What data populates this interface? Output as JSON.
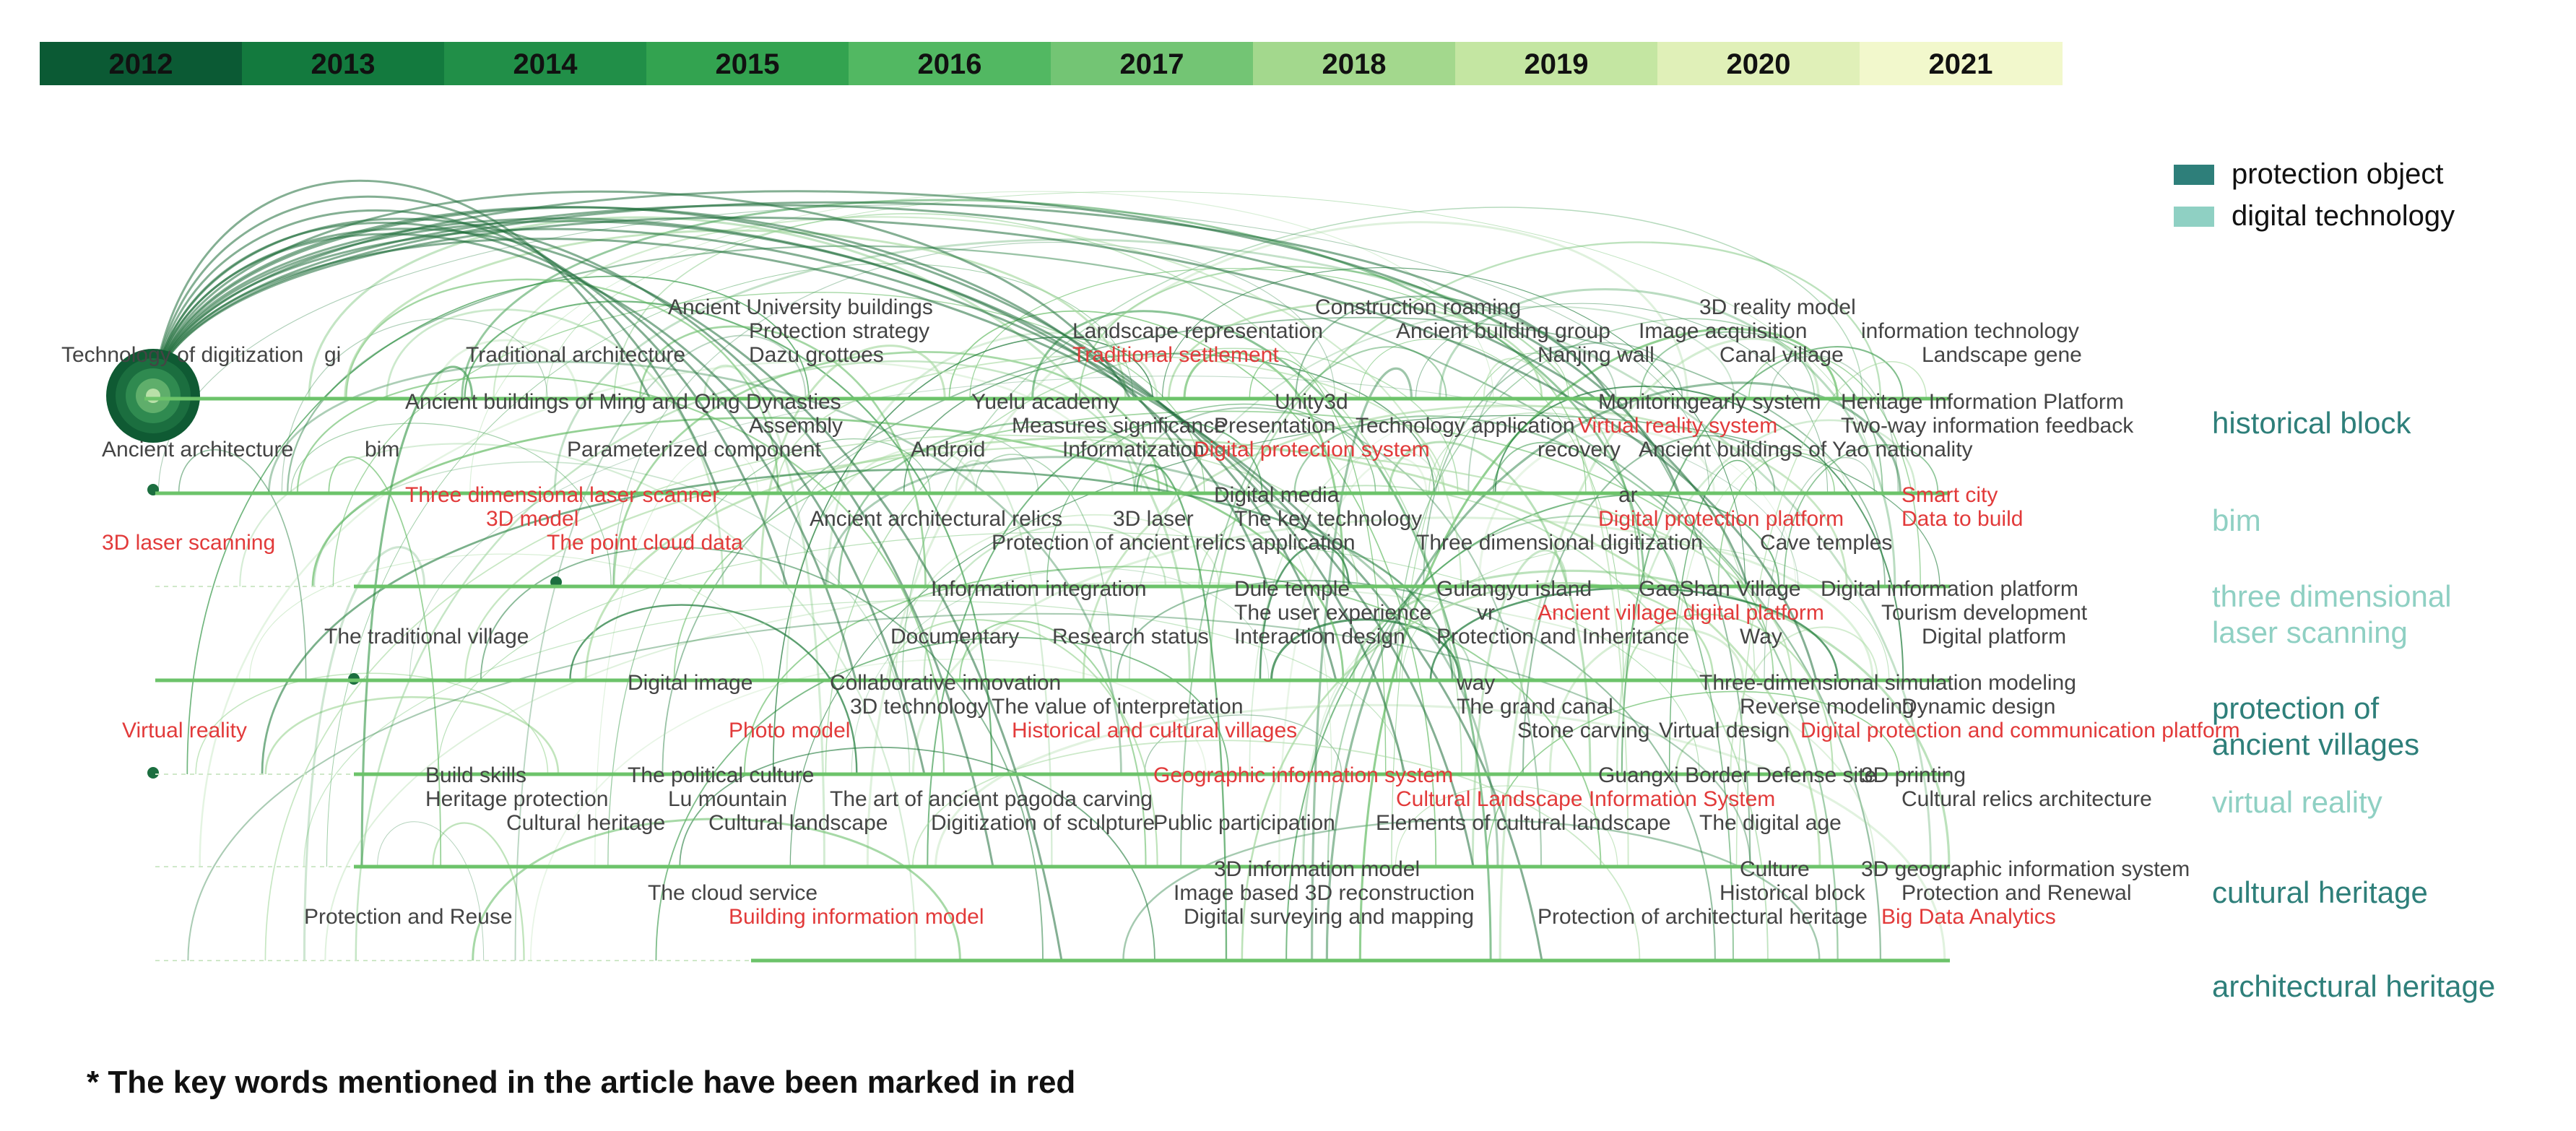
{
  "years": [
    {
      "label": "2012",
      "color": "#0b5a34"
    },
    {
      "label": "2013",
      "color": "#137a3e"
    },
    {
      "label": "2014",
      "color": "#218f48"
    },
    {
      "label": "2015",
      "color": "#33a350"
    },
    {
      "label": "2016",
      "color": "#52b862"
    },
    {
      "label": "2017",
      "color": "#73c574"
    },
    {
      "label": "2018",
      "color": "#a3d88d"
    },
    {
      "label": "2019",
      "color": "#c4e6a2"
    },
    {
      "label": "2020",
      "color": "#e0f0b8"
    },
    {
      "label": "2021",
      "color": "#f2f8cc"
    }
  ],
  "legend": [
    {
      "label": "protection object",
      "color": "#2e7f7a"
    },
    {
      "label": "digital technology",
      "color": "#8fd0c3"
    }
  ],
  "categories": [
    {
      "label": [
        "historical block"
      ],
      "color": "#2e7f7a"
    },
    {
      "label": [
        "bim"
      ],
      "color": "#8fd0c3"
    },
    {
      "label": [
        "three dimensional",
        "laser scanning"
      ],
      "color": "#8fd0c3"
    },
    {
      "label": [
        "protection of",
        "ancient villages"
      ],
      "color": "#2e7f7a"
    },
    {
      "label": [
        "virtual reality"
      ],
      "color": "#8fd0c3"
    },
    {
      "label": [
        "cultural heritage"
      ],
      "color": "#2e7f7a"
    },
    {
      "label": [
        "architectural heritage"
      ],
      "color": "#2e7f7a"
    }
  ],
  "keywords": [
    {
      "text": "Technology of digitization",
      "red": false,
      "band": 0,
      "col": 0.0,
      "line": 2
    },
    {
      "text": "gi",
      "red": false,
      "band": 0,
      "col": 1.3,
      "line": 2
    },
    {
      "text": "Traditional architecture",
      "red": false,
      "band": 0,
      "col": 2.0,
      "line": 2
    },
    {
      "text": "Ancient University buildings",
      "red": false,
      "band": 0,
      "col": 3.0,
      "line": 0
    },
    {
      "text": "Protection strategy",
      "red": false,
      "band": 0,
      "col": 3.4,
      "line": 1
    },
    {
      "text": "Dazu grottoes",
      "red": false,
      "band": 0,
      "col": 3.4,
      "line": 2
    },
    {
      "text": "Landscape representation",
      "red": false,
      "band": 0,
      "col": 5.0,
      "line": 1
    },
    {
      "text": "Traditional settlement",
      "red": true,
      "band": 0,
      "col": 5.0,
      "line": 2
    },
    {
      "text": "Construction roaming",
      "red": false,
      "band": 0,
      "col": 6.2,
      "line": 0
    },
    {
      "text": "Ancient building group",
      "red": false,
      "band": 0,
      "col": 6.6,
      "line": 1
    },
    {
      "text": "Nanjing wall",
      "red": false,
      "band": 0,
      "col": 7.3,
      "line": 2
    },
    {
      "text": "3D reality model",
      "red": false,
      "band": 0,
      "col": 8.1,
      "line": 0
    },
    {
      "text": "Image acquisition",
      "red": false,
      "band": 0,
      "col": 7.8,
      "line": 1
    },
    {
      "text": "Canal village",
      "red": false,
      "band": 0,
      "col": 8.2,
      "line": 2
    },
    {
      "text": "information technology",
      "red": false,
      "band": 0,
      "col": 8.9,
      "line": 1
    },
    {
      "text": "Landscape gene",
      "red": false,
      "band": 0,
      "col": 9.2,
      "line": 2
    },
    {
      "text": "Ancient architecture",
      "red": false,
      "band": 1,
      "col": 0.2,
      "line": 2
    },
    {
      "text": "bim",
      "red": false,
      "band": 1,
      "col": 1.5,
      "line": 2
    },
    {
      "text": "Ancient buildings of Ming and Qing Dynasties",
      "red": false,
      "band": 1,
      "col": 1.7,
      "line": 0
    },
    {
      "text": "Assembly",
      "red": false,
      "band": 1,
      "col": 3.4,
      "line": 1
    },
    {
      "text": "Parameterized component",
      "red": false,
      "band": 1,
      "col": 2.5,
      "line": 2
    },
    {
      "text": "Yuelu academy",
      "red": false,
      "band": 1,
      "col": 4.5,
      "line": 0
    },
    {
      "text": "Android",
      "red": false,
      "band": 1,
      "col": 4.2,
      "line": 2
    },
    {
      "text": "Measures significance",
      "red": false,
      "band": 1,
      "col": 4.7,
      "line": 1
    },
    {
      "text": "Informatization",
      "red": false,
      "band": 1,
      "col": 4.95,
      "line": 2
    },
    {
      "text": "Unity3d",
      "red": false,
      "band": 1,
      "col": 6.0,
      "line": 0
    },
    {
      "text": "Presentation",
      "red": false,
      "band": 1,
      "col": 5.7,
      "line": 1
    },
    {
      "text": "Digital protection system",
      "red": true,
      "band": 1,
      "col": 5.6,
      "line": 2
    },
    {
      "text": "Technology application",
      "red": false,
      "band": 1,
      "col": 6.4,
      "line": 1
    },
    {
      "text": "recovery",
      "red": false,
      "band": 1,
      "col": 7.3,
      "line": 2
    },
    {
      "text": "Monitoringearly system",
      "red": false,
      "band": 1,
      "col": 7.6,
      "line": 0
    },
    {
      "text": "Virtual reality system",
      "red": true,
      "band": 1,
      "col": 7.5,
      "line": 1
    },
    {
      "text": "Ancient buildings of Yao nationality",
      "red": false,
      "band": 1,
      "col": 7.8,
      "line": 2
    },
    {
      "text": "Heritage Information Platform",
      "red": false,
      "band": 1,
      "col": 8.8,
      "line": 0
    },
    {
      "text": "Two-way information feedback",
      "red": false,
      "band": 1,
      "col": 8.8,
      "line": 1
    },
    {
      "text": "3D laser scanning",
      "red": true,
      "band": 2,
      "col": 0.2,
      "line": 2
    },
    {
      "text": "Three dimensional laser scanner",
      "red": true,
      "band": 2,
      "col": 1.7,
      "line": 0
    },
    {
      "text": "3D model",
      "red": true,
      "band": 2,
      "col": 2.1,
      "line": 1
    },
    {
      "text": "The point cloud data",
      "red": true,
      "band": 2,
      "col": 2.4,
      "line": 2
    },
    {
      "text": "Ancient architectural relics",
      "red": false,
      "band": 2,
      "col": 3.7,
      "line": 1
    },
    {
      "text": "3D laser",
      "red": false,
      "band": 2,
      "col": 5.2,
      "line": 1
    },
    {
      "text": "Protection of ancient relics application",
      "red": false,
      "band": 2,
      "col": 4.6,
      "line": 2
    },
    {
      "text": "Digital media",
      "red": false,
      "band": 2,
      "col": 5.7,
      "line": 0
    },
    {
      "text": "The key technology",
      "red": false,
      "band": 2,
      "col": 5.8,
      "line": 1
    },
    {
      "text": "Three dimensional digitization",
      "red": false,
      "band": 2,
      "col": 6.7,
      "line": 2
    },
    {
      "text": "ar",
      "red": false,
      "band": 2,
      "col": 7.7,
      "line": 0
    },
    {
      "text": "Digital protection platform",
      "red": true,
      "band": 2,
      "col": 7.6,
      "line": 1
    },
    {
      "text": "Cave temples",
      "red": false,
      "band": 2,
      "col": 8.4,
      "line": 2
    },
    {
      "text": "Smart city",
      "red": true,
      "band": 2,
      "col": 9.1,
      "line": 0
    },
    {
      "text": "Data to build",
      "red": true,
      "band": 2,
      "col": 9.1,
      "line": 1
    },
    {
      "text": "The traditional village",
      "red": false,
      "band": 3,
      "col": 1.3,
      "line": 2
    },
    {
      "text": "Information integration",
      "red": false,
      "band": 3,
      "col": 4.3,
      "line": 0
    },
    {
      "text": "Documentary",
      "red": false,
      "band": 3,
      "col": 4.1,
      "line": 2
    },
    {
      "text": "Research status",
      "red": false,
      "band": 3,
      "col": 4.9,
      "line": 2
    },
    {
      "text": "Dule temple",
      "red": false,
      "band": 3,
      "col": 5.8,
      "line": 0
    },
    {
      "text": "The user experience",
      "red": false,
      "band": 3,
      "col": 5.8,
      "line": 1
    },
    {
      "text": "Interaction design",
      "red": false,
      "band": 3,
      "col": 5.8,
      "line": 2
    },
    {
      "text": "Gulangyu island",
      "red": false,
      "band": 3,
      "col": 6.8,
      "line": 0
    },
    {
      "text": "vr",
      "red": false,
      "band": 3,
      "col": 7.0,
      "line": 1
    },
    {
      "text": "Protection and Inheritance",
      "red": false,
      "band": 3,
      "col": 6.8,
      "line": 2
    },
    {
      "text": "Ancient village digital platform",
      "red": true,
      "band": 3,
      "col": 7.3,
      "line": 1
    },
    {
      "text": "GaoShan Village",
      "red": false,
      "band": 3,
      "col": 7.8,
      "line": 0
    },
    {
      "text": "Way",
      "red": false,
      "band": 3,
      "col": 8.3,
      "line": 2
    },
    {
      "text": "Digital information platform",
      "red": false,
      "band": 3,
      "col": 8.7,
      "line": 0
    },
    {
      "text": "Tourism development",
      "red": false,
      "band": 3,
      "col": 9.0,
      "line": 1
    },
    {
      "text": "Digital platform",
      "red": false,
      "band": 3,
      "col": 9.2,
      "line": 2
    },
    {
      "text": "Virtual reality",
      "red": true,
      "band": 4,
      "col": 0.3,
      "line": 2
    },
    {
      "text": "Digital image",
      "red": false,
      "band": 4,
      "col": 2.8,
      "line": 0
    },
    {
      "text": "Collaborative innovation",
      "red": false,
      "band": 4,
      "col": 3.8,
      "line": 0
    },
    {
      "text": "3D technology",
      "red": false,
      "band": 4,
      "col": 3.9,
      "line": 1
    },
    {
      "text": "The value of interpretation",
      "red": false,
      "band": 4,
      "col": 4.6,
      "line": 1
    },
    {
      "text": "Photo model",
      "red": true,
      "band": 4,
      "col": 3.3,
      "line": 2
    },
    {
      "text": "Historical and cultural villages",
      "red": true,
      "band": 4,
      "col": 4.7,
      "line": 2
    },
    {
      "text": "way",
      "red": false,
      "band": 4,
      "col": 6.9,
      "line": 0
    },
    {
      "text": "The grand canal",
      "red": false,
      "band": 4,
      "col": 6.9,
      "line": 1
    },
    {
      "text": "Stone carving",
      "red": false,
      "band": 4,
      "col": 7.2,
      "line": 2
    },
    {
      "text": "Virtual design",
      "red": false,
      "band": 4,
      "col": 7.9,
      "line": 2
    },
    {
      "text": "Three-dimensional simulation modeling",
      "red": false,
      "band": 4,
      "col": 8.1,
      "line": 0
    },
    {
      "text": "Reverse modeling",
      "red": false,
      "band": 4,
      "col": 8.3,
      "line": 1
    },
    {
      "text": "Dynamic design",
      "red": false,
      "band": 4,
      "col": 9.1,
      "line": 1
    },
    {
      "text": "Digital protection and communication platform",
      "red": true,
      "band": 4,
      "col": 8.6,
      "line": 2
    },
    {
      "text": "Build skills",
      "red": false,
      "band": 5,
      "col": 1.8,
      "line": 0
    },
    {
      "text": "Heritage protection",
      "red": false,
      "band": 5,
      "col": 1.8,
      "line": 1
    },
    {
      "text": "Cultural heritage",
      "red": false,
      "band": 5,
      "col": 2.2,
      "line": 2
    },
    {
      "text": "The political culture",
      "red": false,
      "band": 5,
      "col": 2.8,
      "line": 0
    },
    {
      "text": "Lu mountain",
      "red": false,
      "band": 5,
      "col": 3.0,
      "line": 1
    },
    {
      "text": "Cultural landscape",
      "red": false,
      "band": 5,
      "col": 3.2,
      "line": 2
    },
    {
      "text": "The art of ancient pagoda carving",
      "red": false,
      "band": 5,
      "col": 3.8,
      "line": 1
    },
    {
      "text": "Digitization of sculpture",
      "red": false,
      "band": 5,
      "col": 4.3,
      "line": 2
    },
    {
      "text": "Geographic information system",
      "red": true,
      "band": 5,
      "col": 5.4,
      "line": 0
    },
    {
      "text": "Public participation",
      "red": false,
      "band": 5,
      "col": 5.4,
      "line": 2
    },
    {
      "text": "Elements of cultural landscape",
      "red": false,
      "band": 5,
      "col": 6.5,
      "line": 2
    },
    {
      "text": "Cultural Landscape Information System",
      "red": true,
      "band": 5,
      "col": 6.6,
      "line": 1
    },
    {
      "text": "Guangxi Border Defense site",
      "red": false,
      "band": 5,
      "col": 7.6,
      "line": 0
    },
    {
      "text": "The digital age",
      "red": false,
      "band": 5,
      "col": 8.1,
      "line": 2
    },
    {
      "text": "3D printing",
      "red": false,
      "band": 5,
      "col": 8.9,
      "line": 0
    },
    {
      "text": "Cultural relics architecture",
      "red": false,
      "band": 5,
      "col": 9.1,
      "line": 1
    },
    {
      "text": "Protection and Reuse",
      "red": false,
      "band": 6,
      "col": 1.2,
      "line": 2
    },
    {
      "text": "The cloud service",
      "red": false,
      "band": 6,
      "col": 2.9,
      "line": 1
    },
    {
      "text": "Building information model",
      "red": true,
      "band": 6,
      "col": 3.3,
      "line": 2
    },
    {
      "text": "3D information model",
      "red": false,
      "band": 6,
      "col": 5.7,
      "line": 0
    },
    {
      "text": "Image based 3D reconstruction",
      "red": false,
      "band": 6,
      "col": 5.5,
      "line": 1
    },
    {
      "text": "Digital surveying and mapping",
      "red": false,
      "band": 6,
      "col": 5.55,
      "line": 2
    },
    {
      "text": "Protection of architectural heritage",
      "red": false,
      "band": 6,
      "col": 7.3,
      "line": 2
    },
    {
      "text": "Culture",
      "red": false,
      "band": 6,
      "col": 8.3,
      "line": 0
    },
    {
      "text": "Historical block",
      "red": false,
      "band": 6,
      "col": 8.2,
      "line": 1
    },
    {
      "text": "3D geographic information system",
      "red": false,
      "band": 6,
      "col": 8.9,
      "line": 0
    },
    {
      "text": "Protection and Renewal",
      "red": false,
      "band": 6,
      "col": 9.1,
      "line": 1
    },
    {
      "text": "Big Data Analytics",
      "red": true,
      "band": 6,
      "col": 9.0,
      "line": 2
    }
  ],
  "note": "* The key words mentioned in the article have been marked in red"
}
